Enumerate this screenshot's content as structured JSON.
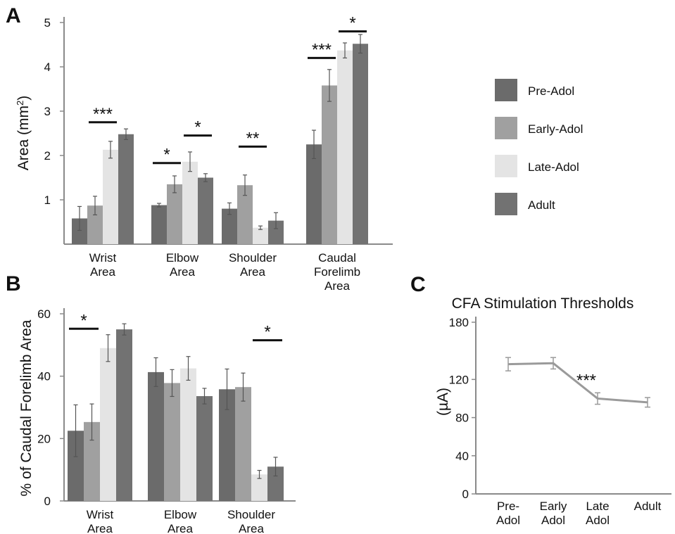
{
  "colors": {
    "series": [
      "#6b6b6b",
      "#a0a0a0",
      "#e4e4e4",
      "#727272"
    ],
    "line": "#9a9a9a",
    "axis": "#8a8a8a",
    "error": "#555555"
  },
  "legend": {
    "entries": [
      "Pre-Adol",
      "Early-Adol",
      "Late-Adol",
      "Adult"
    ]
  },
  "panels": {
    "a": "A",
    "b": "B",
    "c": "C"
  },
  "chart_data": [
    {
      "id": "A",
      "type": "bar",
      "ylabel": "Area (mm",
      "ylabel_sup": "2",
      "ylabel_end": ")",
      "ylim": [
        0,
        5
      ],
      "yticks": [
        1,
        2,
        3,
        4,
        5
      ],
      "categories": [
        [
          "Wrist",
          "Area"
        ],
        [
          "Elbow",
          "Area"
        ],
        [
          "Shoulder",
          "Area"
        ],
        [
          "Caudal",
          "Forelimb",
          "Area"
        ]
      ],
      "series": [
        {
          "name": "Pre-Adol",
          "values": [
            0.58,
            0.88,
            0.8,
            2.25
          ],
          "errors": [
            0.27,
            0.04,
            0.13,
            0.32
          ]
        },
        {
          "name": "Early-Adol",
          "values": [
            0.87,
            1.35,
            1.33,
            3.58
          ],
          "errors": [
            0.21,
            0.19,
            0.23,
            0.36
          ]
        },
        {
          "name": "Late-Adol",
          "values": [
            2.13,
            1.86,
            0.37,
            4.37
          ],
          "errors": [
            0.19,
            0.22,
            0.04,
            0.17
          ]
        },
        {
          "name": "Adult",
          "values": [
            2.48,
            1.5,
            0.53,
            4.52
          ],
          "errors": [
            0.12,
            0.09,
            0.18,
            0.21
          ]
        }
      ],
      "significance": [
        {
          "label": "***",
          "category": 0,
          "from": 1,
          "to": 2,
          "y": 2.75
        },
        {
          "label": "*",
          "category": 1,
          "from": 0,
          "to": 1,
          "y": 1.83
        },
        {
          "label": "*",
          "category": 1,
          "from": 2,
          "to": 3,
          "y": 2.45
        },
        {
          "label": "**",
          "category": 2,
          "from": 1,
          "to": 2,
          "y": 2.2
        },
        {
          "label": "***",
          "category": 3,
          "from": 0,
          "to": 1,
          "y": 4.2
        },
        {
          "label": "*",
          "category": 3,
          "from": 2,
          "to": 3,
          "y": 4.8
        }
      ]
    },
    {
      "id": "B",
      "type": "bar",
      "ylabel": "% of Caudal Forelimb Area",
      "ylim": [
        0,
        60
      ],
      "yticks": [
        0,
        20,
        40,
        60
      ],
      "categories": [
        [
          "Wrist",
          "Area"
        ],
        [
          "Elbow",
          "Area"
        ],
        [
          "Shoulder",
          "Area"
        ]
      ],
      "series": [
        {
          "name": "Pre-Adol",
          "values": [
            22.5,
            41.3,
            35.8
          ],
          "errors": [
            8.3,
            4.6,
            6.5
          ]
        },
        {
          "name": "Early-Adol",
          "values": [
            25.3,
            37.8,
            36.5
          ],
          "errors": [
            5.8,
            4.3,
            4.5
          ]
        },
        {
          "name": "Late-Adol",
          "values": [
            49.0,
            42.5,
            8.5
          ],
          "errors": [
            4.3,
            3.8,
            1.3
          ]
        },
        {
          "name": "Adult",
          "values": [
            55.0,
            33.6,
            11.0
          ],
          "errors": [
            1.8,
            2.5,
            3.0
          ]
        }
      ],
      "significance": [
        {
          "label": "*",
          "category": 0,
          "from": 0,
          "to": 1,
          "y": 55.2
        },
        {
          "label": "*",
          "category": 2,
          "from": 2,
          "to": 3,
          "y": 51.5
        }
      ]
    },
    {
      "id": "C",
      "type": "line",
      "title": "CFA Stimulation Thresholds",
      "ylabel": "(µA)",
      "ylim": [
        0,
        180
      ],
      "yticks": [
        0,
        40,
        80,
        120,
        180
      ],
      "categories": [
        [
          "Pre-",
          "Adol"
        ],
        [
          "Early",
          "Adol"
        ],
        [
          "Late",
          "Adol"
        ],
        [
          "Adult"
        ]
      ],
      "series": [
        {
          "values": [
            136,
            137,
            100,
            96
          ],
          "errors": [
            7,
            6,
            6,
            5
          ]
        }
      ],
      "annotations": [
        {
          "label": "***",
          "category": 2,
          "y": 119
        }
      ]
    }
  ]
}
